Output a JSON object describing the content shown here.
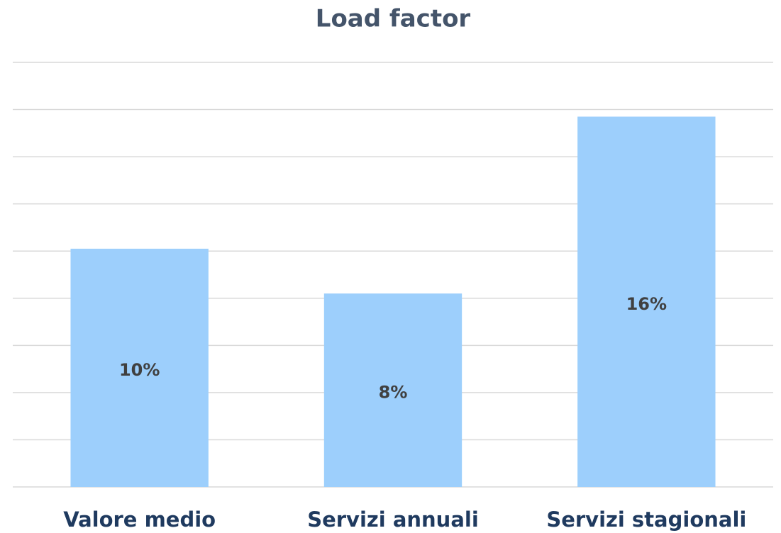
{
  "chart_data": {
    "type": "bar",
    "title": "Load factor",
    "categories": [
      "Valore medio",
      "Servizi annuali",
      "Servizi stagionali"
    ],
    "values": [
      10.1,
      8.2,
      15.7
    ],
    "value_labels": [
      "10%",
      "8%",
      "16%"
    ],
    "color": "#9dcffc",
    "ylim": [
      0,
      18
    ],
    "yticks": [
      0,
      2,
      4,
      6,
      8,
      10,
      12,
      14,
      16,
      18
    ],
    "grid": true
  }
}
